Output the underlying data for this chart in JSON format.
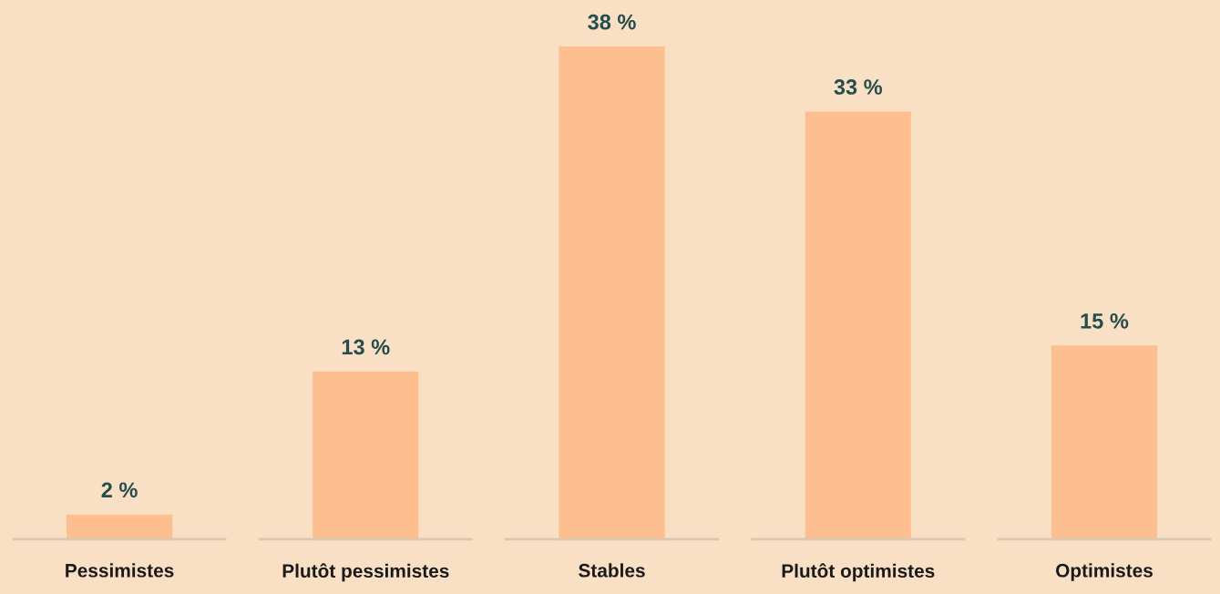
{
  "chart_data": {
    "type": "bar",
    "categories": [
      "Pessimistes",
      "Plutôt pessimistes",
      "Stables",
      "Plutôt optimistes",
      "Optimistes"
    ],
    "values": [
      2,
      13,
      38,
      33,
      15
    ],
    "value_labels": [
      "2 %",
      "13 %",
      "38 %",
      "33 %",
      "15 %"
    ],
    "color": "#fdbf8f",
    "grid": false,
    "legend": false
  }
}
